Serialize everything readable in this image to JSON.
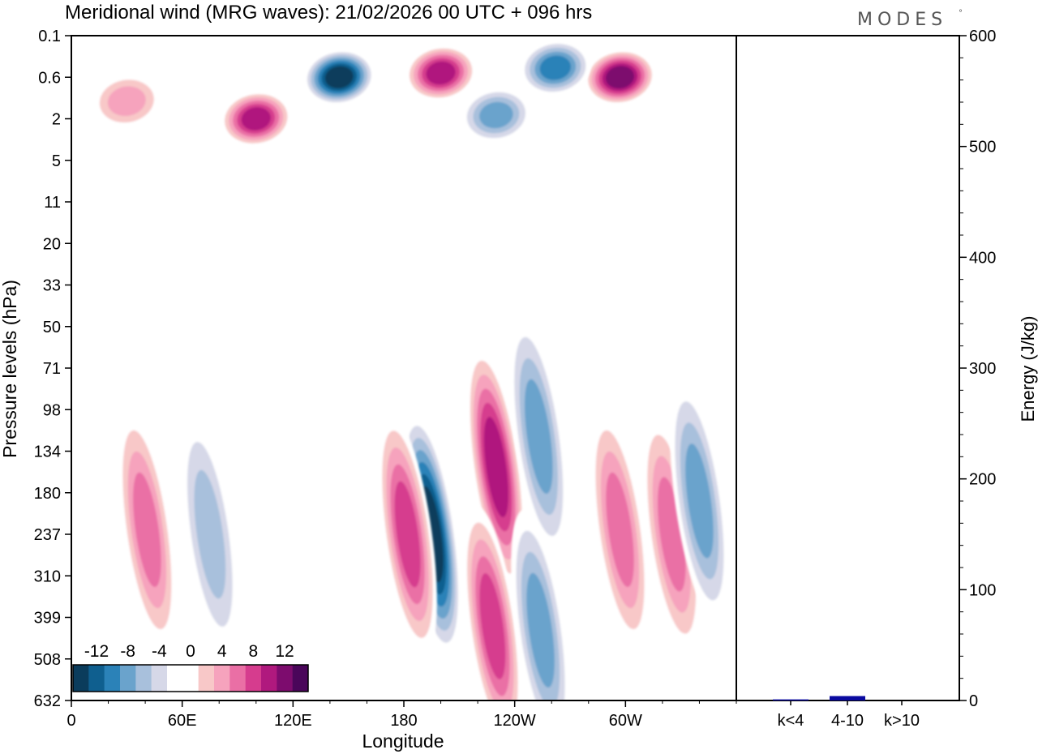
{
  "title": "Meridional wind (MRG waves):  21/02/2026  00 UTC  + 096 hrs",
  "brand": "MODES",
  "brand_mark": "°",
  "chart_data": [
    {
      "type": "heatmap",
      "title": "Meridional wind (MRG waves)",
      "xlabel": "Longitude",
      "ylabel": "Pressure levels (hPa)",
      "x_ticks": [
        "0",
        "60E",
        "120E",
        "180",
        "120W",
        "60W"
      ],
      "y_ticks": [
        "0.1",
        "0.6",
        "2",
        "5",
        "11",
        "20",
        "33",
        "50",
        "71",
        "98",
        "134",
        "180",
        "237",
        "310",
        "399",
        "508",
        "632"
      ],
      "colorbar_ticks": [
        "-12",
        "-8",
        "-4",
        "0",
        "4",
        "8",
        "12"
      ],
      "colorbar_colors": [
        "#0b3c5c",
        "#0f5f8f",
        "#2b82b8",
        "#6aa3cc",
        "#a8c0dc",
        "#d6d8e8",
        "#ffffff",
        "#ffffff",
        "#f8c8c8",
        "#f6a3bd",
        "#ea6fa5",
        "#d63c8e",
        "#b0197e",
        "#7d0c6e",
        "#4a065a"
      ],
      "features": [
        {
          "lon": 195,
          "p": 237,
          "value": -14
        },
        {
          "lon": 182,
          "p": 237,
          "value": 10
        },
        {
          "lon": 230,
          "p": 150,
          "value": 13
        },
        {
          "lon": 253,
          "p": 120,
          "value": -9
        },
        {
          "lon": 228,
          "p": 420,
          "value": 11
        },
        {
          "lon": 254,
          "p": 430,
          "value": -9
        },
        {
          "lon": 297,
          "p": 230,
          "value": 9
        },
        {
          "lon": 325,
          "p": 237,
          "value": 8
        },
        {
          "lon": 340,
          "p": 190,
          "value": -8
        },
        {
          "lon": 41,
          "p": 230,
          "value": 8
        },
        {
          "lon": 75,
          "p": 237,
          "value": -6
        },
        {
          "lon": 145,
          "p": 0.6,
          "value": -15
        },
        {
          "lon": 200,
          "p": 0.5,
          "value": 13
        },
        {
          "lon": 297,
          "p": 0.6,
          "value": 15
        },
        {
          "lon": 262,
          "p": 0.4,
          "value": -10
        },
        {
          "lon": 100,
          "p": 2,
          "value": 12
        },
        {
          "lon": 30,
          "p": 1.2,
          "value": 7
        },
        {
          "lon": 230,
          "p": 1.8,
          "value": -8
        }
      ]
    },
    {
      "type": "bar",
      "categories": [
        "k<4",
        "4-10",
        "k>10"
      ],
      "values": [
        1,
        4,
        0
      ],
      "ylabel": "Energy (J/kg)",
      "ylim": [
        0,
        600
      ],
      "y_ticks": [
        "0",
        "100",
        "200",
        "300",
        "400",
        "500",
        "600"
      ],
      "bar_color": "#0a0aa0"
    }
  ]
}
